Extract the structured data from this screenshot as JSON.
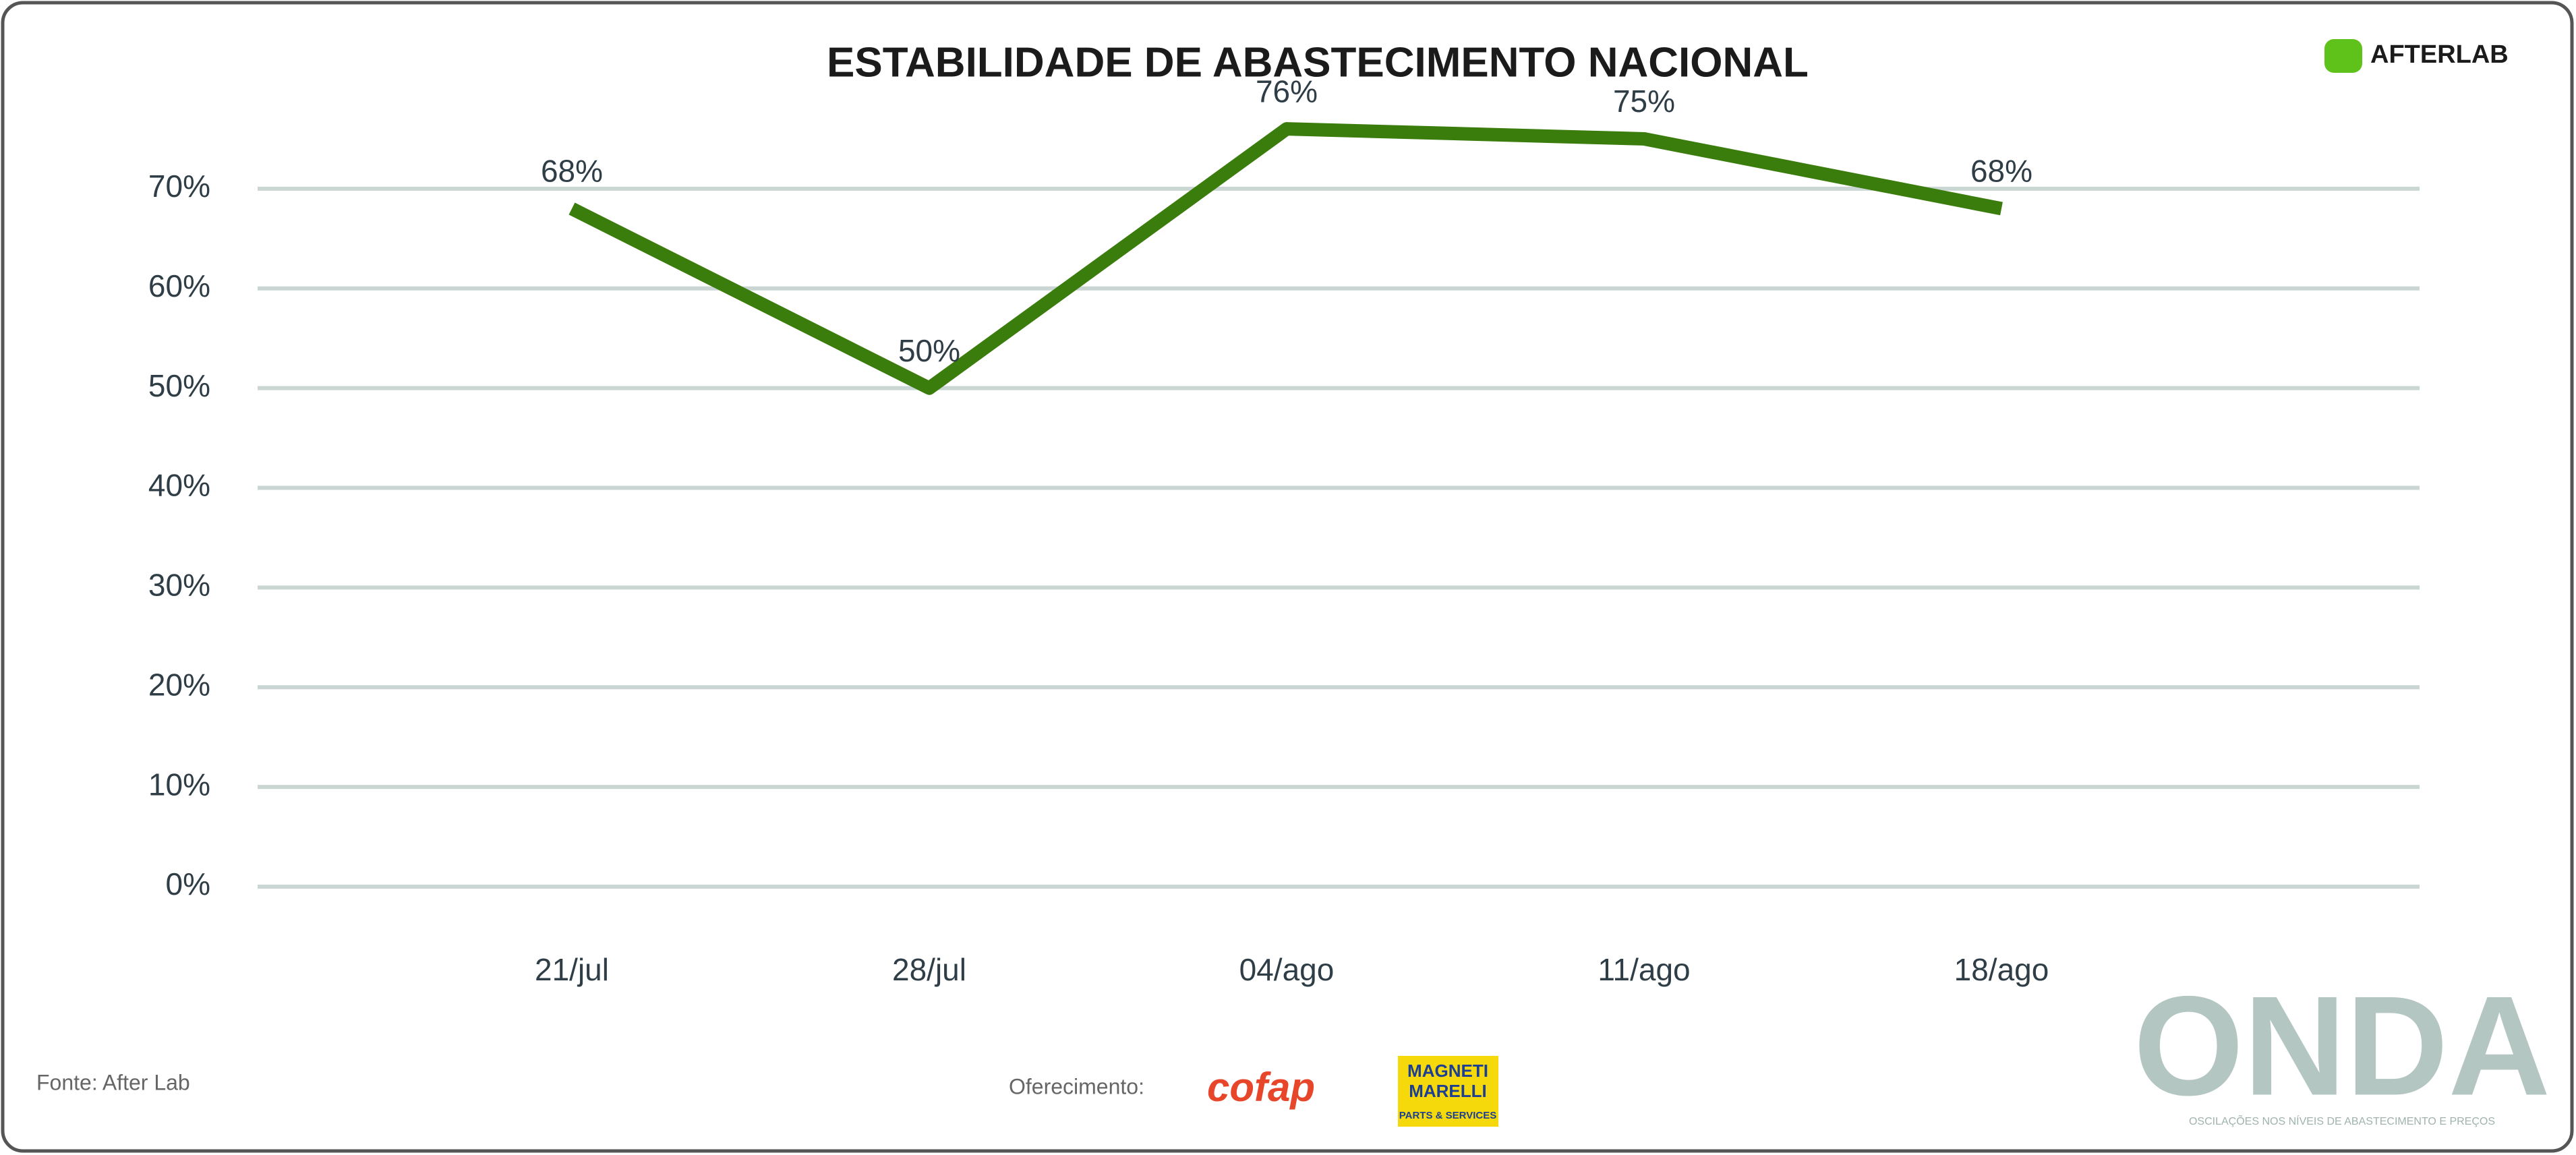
{
  "chart_data": {
    "type": "line",
    "title": "ESTABILIDADE DE ABASTECIMENTO NACIONAL",
    "categories": [
      "21/jul",
      "28/jul",
      "04/ago",
      "11/ago",
      "18/ago"
    ],
    "values": [
      68,
      50,
      76,
      75,
      68
    ],
    "value_labels": [
      "68%",
      "50%",
      "76%",
      "75%",
      "68%"
    ],
    "color": "#3b7d0c",
    "ylim": [
      0,
      80
    ],
    "yticks": [
      {
        "value": 0,
        "label": "0%"
      },
      {
        "value": 10,
        "label": "10%"
      },
      {
        "value": 20,
        "label": "20%"
      },
      {
        "value": 30,
        "label": "30%"
      },
      {
        "value": 40,
        "label": "40%"
      },
      {
        "value": 50,
        "label": "50%"
      },
      {
        "value": 60,
        "label": "60%"
      },
      {
        "value": 70,
        "label": "70%"
      }
    ],
    "grid": true
  },
  "logo": "AFTERLAB",
  "source": "Fonte: After Lab",
  "sponsor_label": "Oferecimento:",
  "sponsors": [
    "cofap",
    "MAGNETI",
    "MARELLI",
    "PARTS & SERVICES"
  ],
  "brand": {
    "name": "ONDA",
    "tagline": "OSCILAÇÕES NOS NÍVEIS DE ABASTECIMENTO E PREÇOS"
  }
}
